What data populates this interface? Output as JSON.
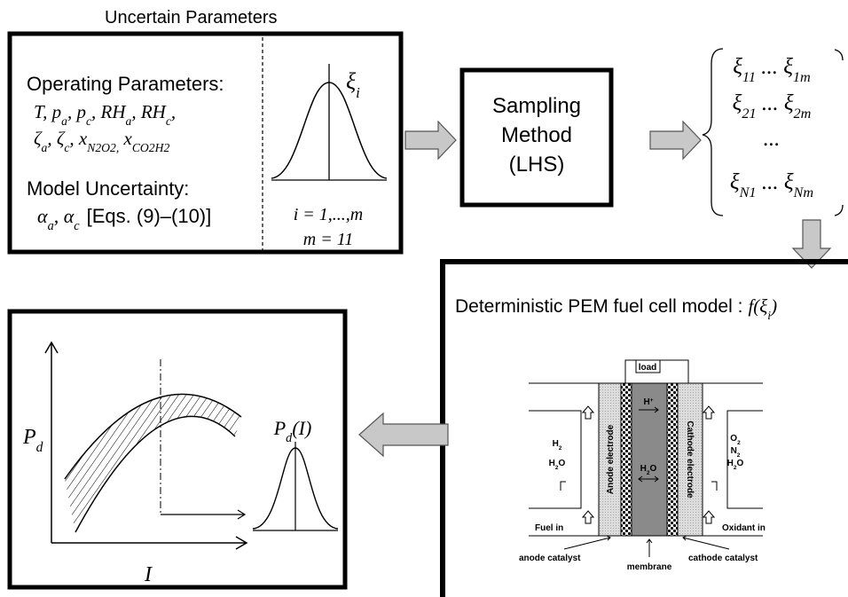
{
  "header": {
    "title": "Uncertain Parameters"
  },
  "uncertain_parameters": {
    "operating_label": "Operating Parameters:",
    "operating_lines": [
      [
        "T, p",
        "a",
        ", p",
        "c",
        ", RH",
        "a",
        ", RH",
        "c",
        ","
      ],
      [
        "ζ",
        "a",
        ", ζ",
        "c",
        ", x",
        "N2O2,",
        " x",
        "CO2H2"
      ]
    ],
    "model_label": "Model Uncertainty:",
    "model_line": [
      "α",
      "a",
      ", α",
      "c"
    ],
    "model_equations": "[Eqs. (9)–(10)]",
    "distribution": {
      "symbol": [
        "ξ",
        "i"
      ],
      "index_range": "i = 1,...,m",
      "count": "m = 11"
    }
  },
  "sampling": {
    "lines": [
      "Sampling",
      "Method",
      "(LHS)"
    ]
  },
  "samples": {
    "rows": [
      [
        "ξ",
        "11",
        " ... ξ",
        "1m"
      ],
      [
        "ξ",
        "21",
        " ... ξ",
        "2m"
      ],
      [
        "..."
      ],
      [
        "ξ",
        "N1",
        " ... ξ",
        "Nm"
      ]
    ]
  },
  "model": {
    "label": "Deterministic PEM fuel cell model :",
    "function": [
      "f(ξ",
      "i",
      ")"
    ]
  },
  "fuel_cell": {
    "load": "load",
    "proton": [
      "H",
      "+"
    ],
    "water_membrane": [
      "H",
      "2",
      "O"
    ],
    "anode_gases": [
      [
        "H",
        "2"
      ],
      [
        "H",
        "2",
        "O"
      ]
    ],
    "cathode_gases": [
      [
        "O",
        "2"
      ],
      [
        "N",
        "2"
      ],
      [
        "H",
        "2",
        "O"
      ]
    ],
    "anode_electrode": "Anode electrode",
    "cathode_electrode": "Cathode electrode",
    "fuel_in": "Fuel in",
    "oxidant_in": "Oxidant in",
    "anode_catalyst": "anode catalyst",
    "membrane": "membrane",
    "cathode_catalyst": "cathode catalyst"
  },
  "output": {
    "y_axis": [
      "P",
      "d"
    ],
    "x_axis": "I",
    "distribution": [
      "P",
      "d",
      "(I)"
    ]
  }
}
